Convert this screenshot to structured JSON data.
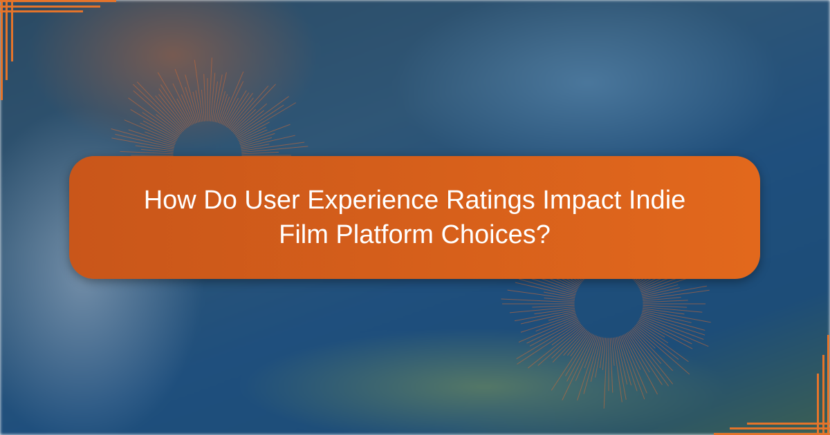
{
  "title": "How Do User Experience Ratings Impact Indie Film Platform Choices?",
  "colors": {
    "accent": "#e2681c",
    "corner_lines": "#e5742a",
    "text": "#ffffff"
  }
}
